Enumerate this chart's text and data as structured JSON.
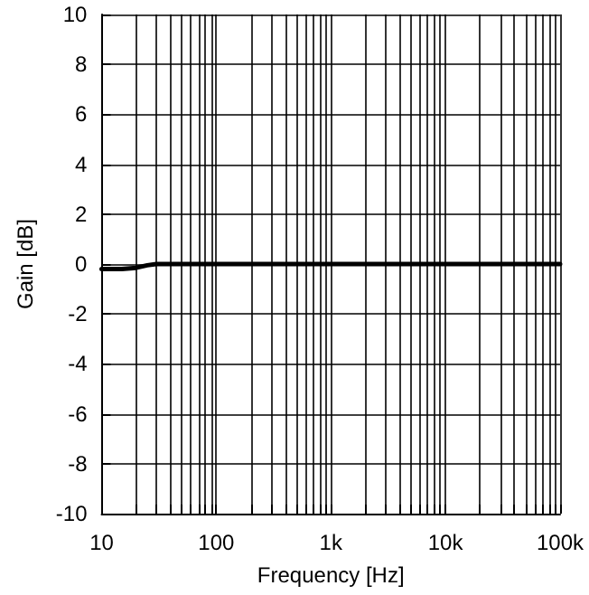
{
  "chart_data": {
    "type": "line",
    "xlabel": "Frequency [Hz]",
    "ylabel": "Gain [dB]",
    "x": [
      10,
      15,
      20,
      25,
      30,
      100,
      1000,
      10000,
      100000
    ],
    "series": [
      {
        "color": "#000000",
        "values": [
          -0.2,
          -0.2,
          -0.15,
          -0.05,
          0,
          0,
          0,
          0,
          0
        ]
      }
    ],
    "log": "x",
    "xlim": [
      10,
      100000
    ],
    "ylim": [
      -10,
      10
    ],
    "xticks": [
      {
        "value": 10,
        "label": "10"
      },
      {
        "value": 100,
        "label": "100"
      },
      {
        "value": 1000,
        "label": "1k"
      },
      {
        "value": 10000,
        "label": "10k"
      },
      {
        "value": 100000,
        "label": "100k"
      }
    ],
    "yticks": [
      -10,
      -8,
      -6,
      -4,
      -2,
      0,
      2,
      4,
      6,
      8,
      10
    ],
    "grid": true,
    "marker": "none",
    "line_style": "solid"
  }
}
